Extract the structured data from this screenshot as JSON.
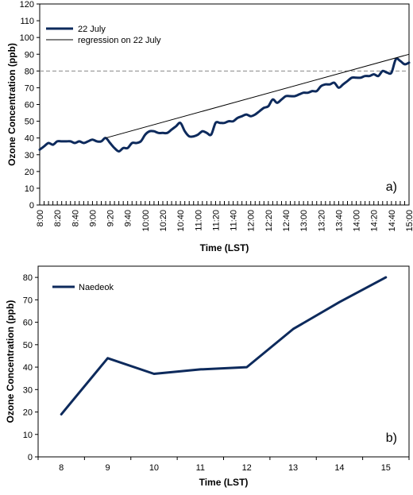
{
  "chart_data": [
    {
      "panel_label": "a)",
      "type": "line",
      "xlabel": "Time (LST)",
      "ylabel": "Ozone Concentration (ppb)",
      "ylim": [
        0,
        120
      ],
      "y_ticks": [
        0,
        10,
        20,
        30,
        40,
        50,
        60,
        70,
        80,
        90,
        100,
        110,
        120
      ],
      "x_ticks": [
        "8:00",
        "8:20",
        "8:40",
        "9:00",
        "9:20",
        "9:40",
        "10:00",
        "10:20",
        "10:40",
        "11:00",
        "11:20",
        "11:40",
        "12:00",
        "12:20",
        "12:40",
        "13:00",
        "13:20",
        "13:40",
        "14:00",
        "14:20",
        "14:40",
        "15:00"
      ],
      "x_range_minutes": [
        480,
        900
      ],
      "reference_line": {
        "y": 80,
        "style": "dashed",
        "color": "#888888"
      },
      "legend_placement": "top-left",
      "series": [
        {
          "name": "22 July",
          "color": "#0d2a5c",
          "x_minutes": [
            480,
            485,
            490,
            495,
            500,
            505,
            510,
            515,
            520,
            525,
            530,
            535,
            540,
            545,
            550,
            555,
            560,
            565,
            570,
            575,
            580,
            585,
            590,
            595,
            600,
            605,
            610,
            615,
            620,
            625,
            630,
            635,
            640,
            645,
            650,
            655,
            660,
            665,
            670,
            675,
            680,
            685,
            690,
            695,
            700,
            705,
            710,
            715,
            720,
            725,
            730,
            735,
            740,
            745,
            750,
            755,
            760,
            765,
            770,
            775,
            780,
            785,
            790,
            795,
            800,
            805,
            810,
            815,
            820,
            825,
            830,
            835,
            840,
            845,
            850,
            855,
            860,
            865,
            870,
            875,
            880,
            885,
            890,
            895,
            900
          ],
          "values": [
            33,
            35,
            37,
            36,
            38,
            38,
            38,
            38,
            37,
            38,
            37,
            38,
            39,
            38,
            38,
            40,
            37,
            34,
            32,
            34,
            34,
            37,
            37,
            38,
            42,
            44,
            44,
            43,
            43,
            43,
            45,
            47,
            49,
            44,
            41,
            41,
            42,
            44,
            43,
            42,
            49,
            49,
            49,
            50,
            50,
            52,
            53,
            54,
            53,
            54,
            56,
            58,
            59,
            63,
            61,
            63,
            65,
            65,
            65,
            66,
            67,
            67,
            68,
            68,
            71,
            72,
            72,
            73,
            70,
            72,
            74,
            76,
            76,
            76,
            77,
            77,
            78,
            77,
            80,
            79,
            79,
            87,
            86,
            84,
            85
          ]
        },
        {
          "name": "regression on 22 July",
          "color": "#000000",
          "x_minutes": [
            555,
            900
          ],
          "values": [
            40,
            90
          ]
        }
      ]
    },
    {
      "panel_label": "b)",
      "type": "line",
      "xlabel": "Time (LST)",
      "ylabel": "Ozone Concentration (ppb)",
      "ylim": [
        0,
        85
      ],
      "y_ticks": [
        0,
        10,
        20,
        30,
        40,
        50,
        60,
        70,
        80
      ],
      "categories": [
        "8",
        "9",
        "10",
        "11",
        "12",
        "13",
        "14",
        "15"
      ],
      "legend_placement": "top-left",
      "series": [
        {
          "name": "Naedeok",
          "color": "#0d2a5c",
          "values": [
            19,
            44,
            37,
            39,
            40,
            57,
            69,
            80
          ]
        }
      ]
    }
  ]
}
